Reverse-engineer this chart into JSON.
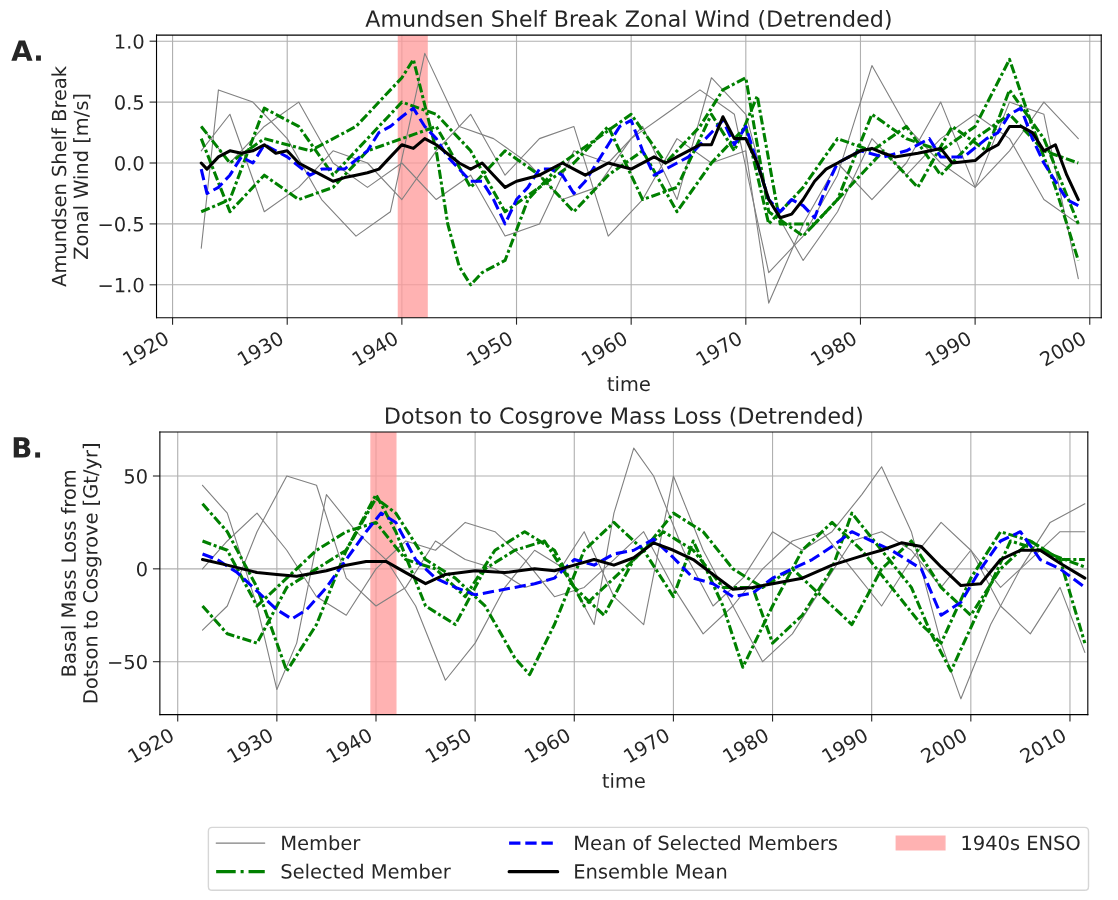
{
  "chart_data": [
    {
      "type": "line",
      "title": "Amundsen Shelf Break Zonal Wind (Detrended)",
      "xlabel": "time",
      "ylabel": "Amundsen Shelf Break\nZonal Wind [m/s]",
      "annotations": [
        "A."
      ],
      "xlim": [
        1918.6,
        2001
      ],
      "xticks": [
        1920,
        1930,
        1940,
        1950,
        1960,
        1970,
        1980,
        1990,
        2000
      ],
      "ylim": [
        -1.27,
        1.05
      ],
      "yticks": [
        {
          "value": -1,
          "label": "−1.0"
        },
        {
          "value": -0.5,
          "label": "−0.5"
        },
        {
          "value": 0,
          "label": "0.0"
        },
        {
          "value": 0.5,
          "label": "0.5"
        },
        {
          "value": 1,
          "label": "1.0"
        }
      ],
      "grid": true,
      "legend": "bottom",
      "bands": [
        {
          "axis": "x",
          "from": 1939.7,
          "to": 1942.2,
          "label": "1940s ENSO",
          "color": "#ff9999"
        }
      ],
      "series": [
        {
          "name": "Member",
          "color": "#808080",
          "line_style": "solid",
          "x": [
            1922.5,
            1924,
            1927,
            1930,
            1933,
            1936,
            1939,
            1942,
            1945,
            1948,
            1951,
            1954,
            1957,
            1960,
            1963,
            1966,
            1969,
            1972,
            1975,
            1978,
            1981,
            1984,
            1987,
            1990,
            1993,
            1996,
            1999
          ],
          "values": [
            -0.7,
            0.6,
            0.5,
            0.2,
            -0.3,
            -0.6,
            -0.4,
            0.9,
            0.3,
            0.2,
            0.0,
            -0.3,
            -0.2,
            0.2,
            0.4,
            0.6,
            0.4,
            -0.9,
            -0.6,
            -0.1,
            0.8,
            0.3,
            0.0,
            -0.2,
            0.5,
            0.4,
            -0.95
          ]
        },
        {
          "color": "#808080",
          "line_style": "solid",
          "x": [
            1922.5,
            1925,
            1928,
            1931,
            1934,
            1937,
            1940,
            1943,
            1946,
            1949,
            1952,
            1955,
            1958,
            1961,
            1964,
            1967,
            1970,
            1972,
            1975,
            1978,
            1981,
            1984,
            1987,
            1990,
            1993,
            1996,
            1999
          ],
          "values": [
            0.1,
            0.4,
            -0.4,
            -0.2,
            0.1,
            0.0,
            -0.3,
            0.1,
            0.4,
            -0.1,
            0.2,
            0.3,
            -0.6,
            -0.3,
            0.2,
            0.0,
            0.1,
            -1.15,
            -0.5,
            0.0,
            -0.3,
            0.0,
            0.5,
            -0.2,
            0.1,
            0.5,
            0.2
          ]
        },
        {
          "color": "#808080",
          "line_style": "solid",
          "x": [
            1922.5,
            1925,
            1928,
            1931,
            1934,
            1937,
            1940,
            1943,
            1946,
            1949,
            1952,
            1955,
            1958,
            1961,
            1964,
            1967,
            1970,
            1972,
            1975,
            1978,
            1981,
            1984,
            1987,
            1990,
            1993,
            1996,
            1999
          ],
          "values": [
            0.3,
            0.0,
            0.3,
            0.5,
            0.0,
            -0.2,
            0.0,
            -0.3,
            -0.1,
            -0.6,
            -0.5,
            0.1,
            0.0,
            0.3,
            -0.3,
            0.7,
            0.4,
            -0.3,
            -0.8,
            -0.4,
            0.2,
            -0.1,
            0.2,
            0.4,
            0.2,
            -0.3,
            -0.5
          ]
        },
        {
          "name": "Selected Member",
          "color": "#008000",
          "line_style": "dashdot",
          "x": [
            1922.5,
            1925,
            1928,
            1932,
            1936,
            1940,
            1941,
            1943,
            1944,
            1945,
            1946,
            1947,
            1949,
            1951,
            1954,
            1957,
            1960,
            1963,
            1966,
            1968,
            1970,
            1972,
            1975,
            1978,
            1981,
            1984,
            1987,
            1990,
            1993,
            1995,
            1997,
            1999
          ],
          "values": [
            0.3,
            0.0,
            0.2,
            0.1,
            0.3,
            0.7,
            0.85,
            0.1,
            -0.5,
            -0.85,
            -1.0,
            -0.9,
            -0.8,
            -0.3,
            0.0,
            0.2,
            0.4,
            0.0,
            0.3,
            0.6,
            0.7,
            -0.4,
            -0.6,
            -0.3,
            0.4,
            0.2,
            0.1,
            0.3,
            0.85,
            0.3,
            -0.2,
            -0.8
          ]
        },
        {
          "color": "#008000",
          "line_style": "dashdot",
          "x": [
            1922.5,
            1925,
            1928,
            1931,
            1934,
            1937,
            1940,
            1943,
            1946,
            1949,
            1952,
            1955,
            1958,
            1961,
            1964,
            1967,
            1969,
            1971,
            1973,
            1976,
            1979,
            1982,
            1985,
            1988,
            1991,
            1993,
            1996,
            1999
          ],
          "values": [
            -0.4,
            -0.3,
            0.45,
            0.3,
            -0.1,
            0.2,
            0.5,
            0.4,
            0.1,
            -0.4,
            -0.2,
            0.0,
            0.3,
            -0.3,
            -0.2,
            0.4,
            0.1,
            0.55,
            -0.5,
            -0.5,
            -0.2,
            0.1,
            -0.2,
            0.3,
            0.1,
            0.6,
            0.2,
            -0.5
          ]
        },
        {
          "color": "#008000",
          "line_style": "dashdot",
          "x": [
            1922.5,
            1925,
            1928,
            1931,
            1934,
            1937,
            1940,
            1943,
            1946,
            1949,
            1952,
            1955,
            1958,
            1961,
            1964,
            1967,
            1970,
            1972,
            1975,
            1978,
            1981,
            1984,
            1987,
            1990,
            1993,
            1996,
            1999
          ],
          "values": [
            0.2,
            -0.4,
            -0.1,
            -0.3,
            -0.2,
            0.1,
            0.2,
            0.3,
            -0.2,
            0.1,
            -0.1,
            -0.4,
            -0.1,
            0.1,
            -0.4,
            0.0,
            0.3,
            -0.5,
            -0.2,
            0.2,
            0.1,
            0.3,
            -0.1,
            0.2,
            0.4,
            0.1,
            0.0
          ]
        },
        {
          "name": "Mean of Selected Members",
          "color": "#0000ff",
          "line_style": "dashed",
          "x": [
            1922.5,
            1923,
            1924,
            1925,
            1926,
            1927,
            1928,
            1929,
            1930,
            1932,
            1933,
            1935,
            1937,
            1938,
            1939,
            1940,
            1941,
            1942,
            1943,
            1944,
            1945,
            1946,
            1947,
            1948,
            1949,
            1950,
            1951,
            1952,
            1953,
            1954,
            1955,
            1956,
            1957,
            1958,
            1959,
            1960,
            1961,
            1962,
            1963,
            1964,
            1965,
            1966,
            1968,
            1969,
            1970,
            1971,
            1972,
            1973,
            1974,
            1975,
            1976,
            1977,
            1978,
            1979,
            1980,
            1982,
            1984,
            1986,
            1987,
            1989,
            1991,
            1992,
            1993,
            1994,
            1995,
            1996,
            1997,
            1998,
            1999
          ],
          "values": [
            -0.05,
            -0.25,
            -0.2,
            -0.1,
            0.05,
            0.0,
            0.15,
            0.1,
            0.05,
            -0.1,
            -0.05,
            -0.05,
            0.1,
            0.25,
            0.3,
            0.38,
            0.45,
            0.3,
            0.2,
            0.05,
            -0.05,
            -0.15,
            -0.15,
            -0.3,
            -0.5,
            -0.3,
            -0.2,
            -0.05,
            -0.05,
            -0.1,
            -0.25,
            -0.15,
            0.0,
            0.15,
            0.3,
            0.35,
            0.1,
            -0.1,
            -0.05,
            0.0,
            0.05,
            0.15,
            0.35,
            0.15,
            0.3,
            0.0,
            -0.3,
            -0.4,
            -0.3,
            -0.35,
            -0.45,
            -0.2,
            0.0,
            0.05,
            0.1,
            0.05,
            0.1,
            0.2,
            0.05,
            0.05,
            0.2,
            0.25,
            0.4,
            0.45,
            0.2,
            0.0,
            -0.15,
            -0.3,
            -0.35
          ]
        },
        {
          "name": "Ensemble Mean",
          "color": "#000000",
          "line_style": "solid",
          "x": [
            1922.5,
            1923,
            1924,
            1925,
            1926,
            1927,
            1928,
            1929,
            1930,
            1931,
            1932,
            1933,
            1934,
            1935,
            1936,
            1937,
            1938,
            1939,
            1940,
            1941,
            1942,
            1943,
            1945,
            1946,
            1947,
            1948,
            1949,
            1950,
            1952,
            1954,
            1955,
            1956,
            1957,
            1958,
            1960,
            1962,
            1963,
            1964,
            1965,
            1966,
            1967,
            1968,
            1969,
            1970,
            1971,
            1972,
            1973,
            1974,
            1975,
            1976,
            1977,
            1978,
            1979,
            1980,
            1981,
            1982,
            1983,
            1985,
            1987,
            1988,
            1990,
            1991,
            1992,
            1993,
            1994,
            1995,
            1996,
            1997,
            1998,
            1999
          ],
          "values": [
            0.0,
            -0.05,
            0.05,
            0.1,
            0.08,
            0.1,
            0.15,
            0.08,
            0.1,
            0.0,
            -0.05,
            -0.1,
            -0.15,
            -0.12,
            -0.1,
            -0.08,
            -0.05,
            0.05,
            0.15,
            0.12,
            0.2,
            0.15,
            0.0,
            -0.05,
            0.0,
            -0.1,
            -0.2,
            -0.15,
            -0.1,
            0.0,
            -0.05,
            -0.1,
            -0.05,
            0.0,
            -0.05,
            0.05,
            0.0,
            0.05,
            0.1,
            0.15,
            0.15,
            0.38,
            0.2,
            0.2,
            0.0,
            -0.3,
            -0.45,
            -0.42,
            -0.3,
            -0.15,
            -0.05,
            0.0,
            0.05,
            0.1,
            0.12,
            0.08,
            0.05,
            0.08,
            0.12,
            0.0,
            0.02,
            0.1,
            0.15,
            0.3,
            0.3,
            0.25,
            0.1,
            0.15,
            -0.1,
            -0.3
          ]
        }
      ]
    },
    {
      "type": "line",
      "title": "Dotson to Cosgrove Mass Loss (Detrended)",
      "xlabel": "time",
      "ylabel": "Basal Mass Loss from\nDotson to Cosgrove [Gt/yr]",
      "annotations": [
        "B."
      ],
      "xlim": [
        1918.2,
        2011.8
      ],
      "xticks": [
        1920,
        1930,
        1940,
        1950,
        1960,
        1970,
        1980,
        1990,
        2000,
        2010
      ],
      "ylim": [
        -78.5,
        73.7
      ],
      "yticks": [
        -50,
        0,
        50
      ],
      "grid": true,
      "legend": "bottom",
      "bands": [
        {
          "axis": "x",
          "from": 1939.5,
          "to": 1942.0,
          "color": "#ff9999"
        }
      ],
      "series": [
        {
          "name": "Member",
          "color": "#808080",
          "line_style": "solid",
          "x": [
            1922.5,
            1925,
            1928,
            1930,
            1932,
            1935,
            1938,
            1941,
            1944,
            1947,
            1950,
            1953,
            1956,
            1959,
            1962,
            1964,
            1966,
            1968,
            1971,
            1974,
            1977,
            1980,
            1983,
            1986,
            1989,
            1991,
            1994,
            1997,
            1999,
            2002,
            2005,
            2008,
            2011.5
          ],
          "values": [
            45,
            30,
            -20,
            -65,
            -40,
            40,
            20,
            5,
            -20,
            -60,
            -40,
            -10,
            10,
            0,
            -30,
            30,
            65,
            50,
            10,
            -20,
            -5,
            20,
            10,
            20,
            40,
            55,
            20,
            -40,
            -70,
            -30,
            0,
            25,
            35
          ]
        },
        {
          "color": "#808080",
          "line_style": "solid",
          "x": [
            1922.5,
            1925,
            1928,
            1931,
            1934,
            1937,
            1940,
            1943,
            1946,
            1949,
            1952,
            1955,
            1958,
            1961,
            1964,
            1967,
            1970,
            1973,
            1976,
            1979,
            1982,
            1985,
            1988,
            1991,
            1994,
            1997,
            2000,
            2003,
            2006,
            2009,
            2011.5
          ],
          "values": [
            -33,
            -20,
            20,
            50,
            45,
            -5,
            -20,
            -10,
            15,
            5,
            0,
            -10,
            -5,
            20,
            -15,
            -30,
            50,
            10,
            -20,
            -50,
            -35,
            -10,
            15,
            20,
            10,
            -10,
            10,
            -20,
            -35,
            -10,
            -45
          ]
        },
        {
          "color": "#808080",
          "line_style": "solid",
          "x": [
            1922.5,
            1925,
            1928,
            1931,
            1934,
            1937,
            1940,
            1943,
            1946,
            1949,
            1952,
            1955,
            1958,
            1961,
            1964,
            1967,
            1970,
            1973,
            1976,
            1979,
            1982,
            1985,
            1988,
            1991,
            1994,
            1997,
            2000,
            2003,
            2006,
            2009,
            2011.5
          ],
          "values": [
            0,
            15,
            30,
            10,
            -15,
            -25,
            0,
            15,
            10,
            25,
            20,
            5,
            -15,
            -10,
            5,
            20,
            -10,
            -35,
            -20,
            0,
            15,
            20,
            0,
            -20,
            5,
            25,
            10,
            -10,
            5,
            20,
            20
          ]
        },
        {
          "name": "Selected Member",
          "color": "#008000",
          "line_style": "dashdot",
          "x": [
            1922.5,
            1925,
            1928,
            1931,
            1934,
            1937,
            1940,
            1942,
            1945,
            1948,
            1951,
            1954,
            1955.5,
            1958,
            1961,
            1964,
            1967,
            1970,
            1972,
            1975,
            1977,
            1980,
            1983,
            1986,
            1989,
            1992,
            1995,
            1997,
            2000,
            2003,
            2006,
            2009,
            2011.5
          ],
          "values": [
            35,
            20,
            -10,
            -55,
            -30,
            10,
            38,
            30,
            5,
            -5,
            -20,
            -48,
            -57,
            -30,
            10,
            25,
            10,
            -15,
            15,
            -20,
            -53,
            -20,
            10,
            25,
            10,
            -10,
            -30,
            -40,
            -5,
            20,
            15,
            5,
            -40
          ]
        },
        {
          "color": "#008000",
          "line_style": "dashdot",
          "x": [
            1922.5,
            1925,
            1928,
            1931,
            1934,
            1937,
            1940,
            1942,
            1945,
            1948,
            1951,
            1954,
            1957,
            1960,
            1963,
            1966,
            1969,
            1972,
            1975,
            1978,
            1980,
            1983,
            1986,
            1988,
            1991,
            1994,
            1996,
            1998,
            2001,
            2004,
            2007,
            2011.5
          ],
          "values": [
            -20,
            -35,
            -40,
            -10,
            0,
            10,
            40,
            20,
            -20,
            -30,
            0,
            10,
            15,
            -10,
            -25,
            5,
            20,
            10,
            -10,
            -10,
            -40,
            -25,
            0,
            30,
            10,
            -10,
            -35,
            -55,
            -20,
            15,
            10,
            1
          ]
        },
        {
          "color": "#008000",
          "line_style": "dashdot",
          "x": [
            1922.5,
            1925,
            1928,
            1931,
            1934,
            1937,
            1940,
            1943,
            1946,
            1949,
            1952,
            1955,
            1958,
            1961,
            1964,
            1967,
            1970,
            1973,
            1976,
            1979,
            1982,
            1985,
            1988,
            1991,
            1994,
            1997,
            2000,
            2003,
            2006,
            2009,
            2011.5
          ],
          "values": [
            15,
            10,
            -20,
            -5,
            10,
            20,
            25,
            5,
            0,
            -15,
            10,
            20,
            10,
            -20,
            -5,
            10,
            30,
            20,
            0,
            -10,
            0,
            -15,
            -30,
            0,
            15,
            -10,
            -25,
            0,
            15,
            5,
            5
          ]
        },
        {
          "name": "Mean of Selected Members",
          "color": "#0000ff",
          "line_style": "dashed",
          "x": [
            1922.5,
            1924,
            1926,
            1928,
            1930,
            1931.5,
            1933,
            1935,
            1937,
            1939,
            1940.5,
            1942,
            1944,
            1946,
            1948,
            1950,
            1952,
            1954,
            1956,
            1958,
            1960,
            1962,
            1964,
            1966,
            1968,
            1970,
            1972,
            1974,
            1976,
            1978,
            1980,
            1982,
            1984,
            1986,
            1988,
            1990,
            1992,
            1995,
            1997,
            1999,
            2001,
            2003,
            2005,
            2007,
            2009,
            2011.5
          ],
          "values": [
            8,
            5,
            -2,
            -12,
            -22,
            -27,
            -22,
            -10,
            5,
            20,
            30,
            25,
            5,
            -5,
            -10,
            -14,
            -12,
            -10,
            -8,
            -5,
            5,
            2,
            8,
            10,
            16,
            6,
            -5,
            -8,
            -15,
            -13,
            -5,
            0,
            5,
            12,
            20,
            15,
            10,
            0,
            -25,
            -18,
            0,
            15,
            20,
            5,
            0,
            -10
          ]
        },
        {
          "name": "Ensemble Mean",
          "color": "#000000",
          "line_style": "solid",
          "x": [
            1922.5,
            1925,
            1928,
            1930,
            1932,
            1935,
            1937,
            1939,
            1941,
            1943,
            1945,
            1947,
            1950,
            1953,
            1956,
            1958,
            1960,
            1962,
            1964,
            1966,
            1968,
            1970,
            1972,
            1974,
            1976,
            1978,
            1980,
            1983,
            1986,
            1989,
            1991,
            1993,
            1995,
            1997,
            1999,
            2001,
            2003,
            2005,
            2007,
            2009,
            2011.5
          ],
          "values": [
            5,
            2,
            -2,
            -3,
            -4,
            -1,
            2,
            4,
            4,
            -2,
            -8,
            -3,
            -1,
            -2,
            0,
            -1,
            2,
            5,
            2,
            6,
            14,
            10,
            5,
            -3,
            -11,
            -10,
            -8,
            -5,
            2,
            7,
            10,
            14,
            12,
            1,
            -9,
            -8,
            5,
            10,
            10,
            3,
            -5
          ]
        }
      ]
    }
  ]
}
